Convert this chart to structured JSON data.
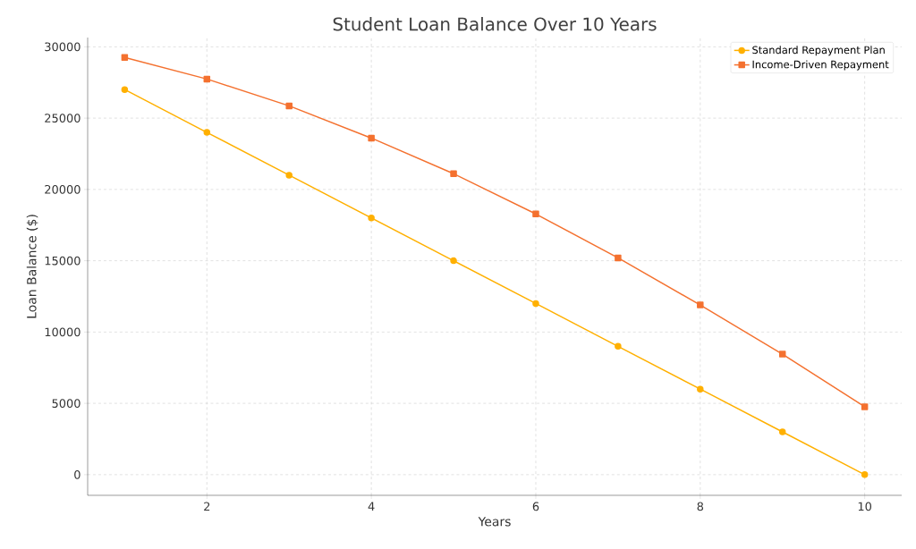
{
  "chart_data": {
    "type": "line",
    "title": "Student Loan Balance Over 10 Years",
    "xlabel": "Years",
    "ylabel": "Loan Balance ($)",
    "x": [
      1,
      2,
      3,
      4,
      5,
      6,
      7,
      8,
      9,
      10
    ],
    "series": [
      {
        "name": "Standard Repayment Plan",
        "color": "#ffb000",
        "marker": "circle",
        "values": [
          27000,
          24000,
          21000,
          18000,
          15000,
          12000,
          9000,
          6000,
          3000,
          0
        ]
      },
      {
        "name": "Income-Driven Repayment",
        "color": "#f4712f",
        "marker": "square",
        "values": [
          29250,
          27740,
          25860,
          23600,
          21100,
          18280,
          15200,
          11900,
          8450,
          4760
        ]
      }
    ],
    "xlim": [
      0.55,
      10.45
    ],
    "ylim": [
      -1450,
      30650
    ],
    "xticks": [
      2,
      4,
      6,
      8,
      10
    ],
    "yticks": [
      0,
      5000,
      10000,
      15000,
      20000,
      25000,
      30000
    ],
    "grid": true,
    "legend": "top right",
    "line_style": "solid"
  }
}
